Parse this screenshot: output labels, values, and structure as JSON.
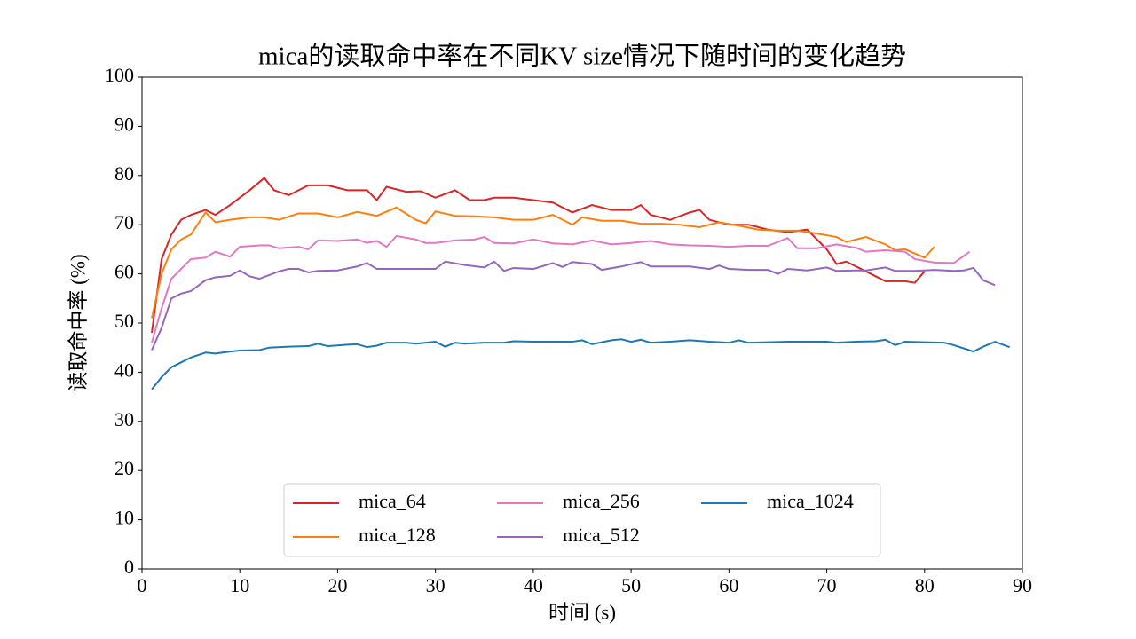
{
  "chart_data": {
    "type": "line",
    "title": "mica的读取命中率在不同KV size情况下随时间的变化趋势",
    "xlabel": "时间 (s)",
    "ylabel": "读取命中率 (%)",
    "xlim": [
      0,
      90
    ],
    "xticks": [
      0,
      10,
      20,
      30,
      40,
      50,
      60,
      70,
      80,
      90
    ],
    "ylim": [
      0,
      100
    ],
    "yticks": [
      0,
      10,
      20,
      30,
      40,
      50,
      60,
      70,
      80,
      90,
      100
    ],
    "legend": "lower center",
    "series": [
      {
        "name": "mica_64",
        "color": "#d62728",
        "x": [
          1,
          2,
          3,
          4,
          5,
          6.5,
          7.5,
          9,
          11,
          12.5,
          13.5,
          15,
          17,
          19,
          21,
          23,
          24,
          25,
          27,
          28.5,
          30,
          32,
          33.5,
          35,
          36,
          38,
          40,
          42,
          44,
          46,
          48,
          50,
          51,
          52,
          54,
          56,
          57,
          58,
          60,
          62,
          64,
          66,
          68,
          70,
          71,
          72,
          74,
          76,
          78,
          79,
          80
        ],
        "values": [
          48,
          63,
          68,
          71,
          72,
          73,
          72,
          74,
          77,
          79.5,
          77,
          76,
          78,
          78,
          77,
          77,
          75,
          77.7,
          76.7,
          76.8,
          75.5,
          77,
          75,
          75,
          75.5,
          75.5,
          75,
          74.5,
          72.5,
          74,
          73,
          73,
          74,
          72,
          71,
          72.5,
          73,
          71,
          70,
          70,
          69,
          68.5,
          69,
          65,
          62,
          62.5,
          60.5,
          58.5,
          58.5,
          58.2,
          60.5
        ]
      },
      {
        "name": "mica_128",
        "color": "#ff7f0e",
        "x": [
          1,
          2,
          3,
          4,
          5,
          6.5,
          7.5,
          9,
          11,
          12.5,
          14,
          16,
          18,
          20,
          22,
          24,
          26,
          28,
          29,
          30,
          32,
          34,
          36,
          38,
          40,
          42,
          44,
          45,
          47,
          49,
          51,
          53,
          55,
          57,
          59,
          61,
          63,
          65,
          67,
          69,
          71,
          72,
          74,
          76,
          77,
          78,
          80,
          81
        ],
        "values": [
          51,
          60,
          65,
          67,
          68,
          72.5,
          70.5,
          71,
          71.5,
          71.5,
          71,
          72.3,
          72.3,
          71.5,
          72.6,
          71.8,
          73.5,
          71,
          70.3,
          72.7,
          71.8,
          71.7,
          71.5,
          71,
          71,
          72,
          70,
          71.5,
          70.8,
          70.8,
          70.2,
          70.2,
          70,
          69.5,
          70.5,
          69.8,
          69,
          68.8,
          68.8,
          68.2,
          67.5,
          66.5,
          67.5,
          66,
          64.8,
          65,
          63.3,
          65.5
        ]
      },
      {
        "name": "mica_256",
        "color": "#e377c2",
        "x": [
          1,
          2,
          3,
          4,
          5,
          6.5,
          7.5,
          9,
          10,
          12,
          13,
          14,
          16,
          17,
          18,
          20,
          22,
          23,
          24,
          25,
          26,
          28,
          29,
          30,
          32,
          34,
          35,
          36,
          38,
          40,
          42,
          44,
          46,
          48,
          50,
          52,
          54,
          56,
          58,
          60,
          62,
          64,
          66,
          67,
          69,
          71,
          73,
          74,
          76,
          78,
          79,
          81,
          83,
          84.6
        ],
        "values": [
          46,
          53,
          59,
          61,
          63,
          63.3,
          64.5,
          63.5,
          65.5,
          65.8,
          65.8,
          65.2,
          65.5,
          65,
          66.8,
          66.7,
          67,
          66.3,
          66.7,
          65.5,
          67.7,
          67,
          66.3,
          66.3,
          66.8,
          67,
          67.5,
          66.3,
          66.2,
          67,
          66.2,
          66,
          66.8,
          66,
          66.3,
          66.7,
          66,
          65.8,
          65.7,
          65.5,
          65.7,
          65.7,
          67.3,
          65.2,
          65.2,
          66,
          65.3,
          64.5,
          64.8,
          64.5,
          63,
          62.3,
          62.2,
          64.5
        ]
      },
      {
        "name": "mica_512",
        "color": "#9467bd",
        "x": [
          1,
          2,
          3,
          4,
          5,
          6.5,
          7.5,
          9,
          10,
          11,
          12,
          14,
          15,
          16,
          17,
          18,
          20,
          22,
          23,
          24,
          26,
          28,
          30,
          31,
          33,
          35,
          36,
          37,
          38,
          40,
          42,
          43,
          44,
          46,
          47,
          49,
          51,
          52,
          54,
          56,
          58,
          59,
          60,
          62,
          64,
          65,
          66,
          68,
          70,
          71,
          73,
          74,
          76,
          77,
          79,
          81,
          83,
          84,
          85,
          86,
          87.2
        ],
        "values": [
          44.5,
          49,
          55,
          56,
          56.5,
          58.7,
          59.3,
          59.6,
          60.7,
          59.5,
          59,
          60.5,
          61,
          61,
          60.3,
          60.6,
          60.7,
          61.5,
          62.2,
          61,
          61,
          61,
          61,
          62.5,
          61.8,
          61.3,
          62.5,
          60.6,
          61.2,
          61,
          62.2,
          61.4,
          62.4,
          62,
          60.8,
          61.5,
          62.4,
          61.5,
          61.5,
          61.5,
          61,
          61.7,
          61,
          60.8,
          60.8,
          60,
          61,
          60.7,
          61.3,
          60.6,
          60.7,
          60.7,
          61.3,
          60.6,
          60.6,
          60.8,
          60.6,
          60.7,
          61.2,
          58.7,
          57.7
        ]
      },
      {
        "name": "mica_1024",
        "color": "#1f77b4",
        "x": [
          1,
          2,
          3,
          4,
          5,
          6.5,
          7.5,
          9,
          10,
          12,
          13,
          15,
          17,
          18,
          19,
          21,
          22,
          23,
          24,
          25,
          27,
          28,
          30,
          31,
          32,
          33,
          35,
          37,
          38,
          40,
          42,
          44,
          45,
          46,
          48,
          49,
          50,
          51,
          52,
          54,
          56,
          58,
          60,
          61,
          62,
          64,
          66,
          68,
          70,
          71,
          73,
          75,
          76,
          77,
          78,
          80,
          82,
          83,
          85,
          86,
          87.2,
          88.7
        ],
        "values": [
          36.5,
          39,
          41,
          42,
          43,
          44,
          43.8,
          44.2,
          44.4,
          44.5,
          45,
          45.2,
          45.3,
          45.8,
          45.3,
          45.6,
          45.7,
          45.1,
          45.4,
          46,
          46,
          45.8,
          46.2,
          45.2,
          46,
          45.8,
          46,
          46,
          46.3,
          46.2,
          46.2,
          46.2,
          46.5,
          45.7,
          46.5,
          46.7,
          46.2,
          46.6,
          46,
          46.2,
          46.5,
          46.2,
          46,
          46.5,
          46,
          46.1,
          46.2,
          46.2,
          46.2,
          46,
          46.2,
          46.3,
          46.6,
          45.5,
          46.2,
          46.1,
          46,
          45.5,
          44.2,
          45.2,
          46.2,
          45.1
        ]
      }
    ]
  }
}
